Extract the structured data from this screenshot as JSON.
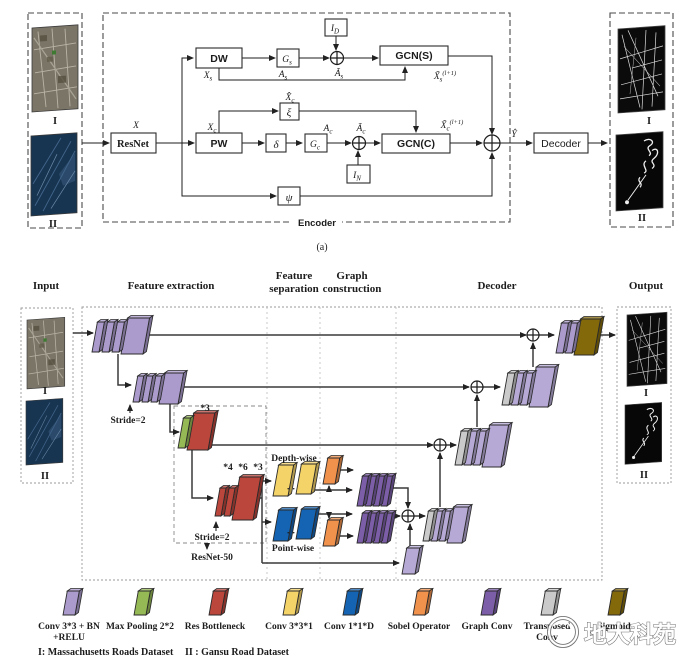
{
  "caption_a": "(a)",
  "palette": {
    "conv": "#ab9bcd",
    "convl": "#b7a9d6",
    "pool": "#95b955",
    "res": "#ba463c",
    "c331": "#f4d369",
    "c11d": "#1564b3",
    "sobel": "#f0914c",
    "gconv": "#7c5ea8",
    "tconv": "#cacaca",
    "sigm": "#84690a"
  },
  "part_a": {
    "input": {
      "label_i": "I",
      "label_ii": "II"
    },
    "output": {
      "label_i": "I",
      "label_ii": "II"
    },
    "encoder_label": "Encoder",
    "blocks": {
      "resnet": "ResNet",
      "dw": "DW",
      "pw": "PW",
      "gcn_s": "GCN(S)",
      "gcn_c": "GCN(C)",
      "decoder": "Decoder",
      "delta": "δ",
      "xi": "ξ",
      "psi": "ψ",
      "g_s": {
        "base": "G",
        "sub": "s"
      },
      "g_c": {
        "base": "G",
        "sub": "c"
      },
      "i_d": {
        "base": "I",
        "sub": "D"
      },
      "i_n": {
        "base": "I",
        "sub": "N"
      }
    },
    "labels": {
      "x": "X",
      "x_s": {
        "base": "X",
        "sub": "s"
      },
      "x_c": {
        "base": "X",
        "sub": "c"
      },
      "x_c_hat": {
        "base": "X̂",
        "sub": "c"
      },
      "a_s": {
        "base": "A",
        "sub": "s"
      },
      "a_c": {
        "base": "A",
        "sub": "c"
      },
      "a_s_tilde": {
        "base": "Ã",
        "sub": "s"
      },
      "a_c_tilde": {
        "base": "Ã",
        "sub": "c"
      },
      "x_s_out": {
        "base": "X̃",
        "sub": "s",
        "sup": "(l+1)"
      },
      "x_c_out": {
        "base": "X̃",
        "sub": "c",
        "sup": "(l+1)"
      },
      "y_hat": "Ŷ"
    }
  },
  "part_b": {
    "headers": {
      "input": "Input",
      "feature_extraction": "Feature extraction",
      "feature_separation_1": "Feature",
      "feature_separation_2": "separation",
      "graph_construction_1": "Graph",
      "graph_construction_2": "construction",
      "decoder": "Decoder",
      "output": "Output"
    },
    "input": {
      "label_i": "I",
      "label_ii": "II"
    },
    "output": {
      "label_i": "I",
      "label_ii": "II"
    },
    "annotations": {
      "stride_1": "Stride=2",
      "stride_2": "Stride=2",
      "resnet50": "ResNet-50",
      "mult_3": "*3",
      "mult_4": "*4",
      "mult_6": "*6",
      "mult_3b": "*3",
      "depth_wise": "Depth-wise",
      "point_wise": "Point-wise",
      "dots_top": "· ·",
      "dots_bottom": "· ·"
    },
    "legend": [
      {
        "line1": "Conv 3*3 + BN",
        "line2": "+RELU",
        "color": "#ab9bcd"
      },
      {
        "line1": "Max Pooling 2*2",
        "line2": "",
        "color": "#95b955"
      },
      {
        "line1": "Res Bottleneck",
        "line2": "",
        "color": "#ba463c"
      },
      {
        "line1": "Conv 3*3*1",
        "line2": "",
        "color": "#f4d369"
      },
      {
        "line1": "Conv 1*1*D",
        "line2": "",
        "color": "#1564b3"
      },
      {
        "line1": "Sobel Operator",
        "line2": "",
        "color": "#f0914c"
      },
      {
        "line1": "Graph Conv",
        "line2": "",
        "color": "#7c5ea8"
      },
      {
        "line1": "Transposed",
        "line2": "Conv",
        "color": "#cacaca"
      },
      {
        "line1": "Sigmoid",
        "line2": "",
        "color": "#84690a"
      }
    ],
    "datasets_i": "I: Massachusetts Roads Dataset",
    "datasets_ii": "II : Gansu Road Dataset"
  },
  "watermark": {
    "text": "地大科苑"
  }
}
